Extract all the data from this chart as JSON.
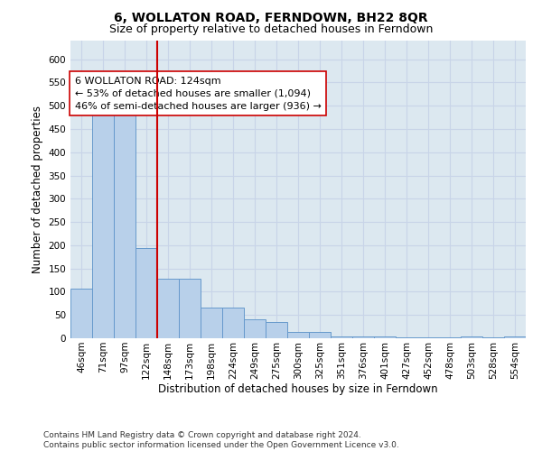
{
  "title": "6, WOLLATON ROAD, FERNDOWN, BH22 8QR",
  "subtitle": "Size of property relative to detached houses in Ferndown",
  "xlabel": "Distribution of detached houses by size in Ferndown",
  "ylabel": "Number of detached properties",
  "bar_labels": [
    "46sqm",
    "71sqm",
    "97sqm",
    "122sqm",
    "148sqm",
    "173sqm",
    "198sqm",
    "224sqm",
    "249sqm",
    "275sqm",
    "300sqm",
    "325sqm",
    "351sqm",
    "376sqm",
    "401sqm",
    "427sqm",
    "452sqm",
    "478sqm",
    "503sqm",
    "528sqm",
    "554sqm"
  ],
  "bar_values": [
    107,
    487,
    483,
    193,
    128,
    128,
    65,
    65,
    40,
    35,
    13,
    13,
    4,
    4,
    4,
    2,
    2,
    2,
    4,
    2,
    4
  ],
  "bar_color": "#b8d0ea",
  "bar_edge_color": "#6699cc",
  "highlight_index": 3,
  "highlight_color": "#cc0000",
  "annotation_text": "6 WOLLATON ROAD: 124sqm\n← 53% of detached houses are smaller (1,094)\n46% of semi-detached houses are larger (936) →",
  "annotation_box_color": "white",
  "annotation_box_edge": "#cc0000",
  "ylim": [
    0,
    640
  ],
  "yticks": [
    0,
    50,
    100,
    150,
    200,
    250,
    300,
    350,
    400,
    450,
    500,
    550,
    600
  ],
  "grid_color": "#c8d4e8",
  "bg_color": "#dce8f0",
  "footer": "Contains HM Land Registry data © Crown copyright and database right 2024.\nContains public sector information licensed under the Open Government Licence v3.0.",
  "title_fontsize": 10,
  "subtitle_fontsize": 9,
  "annotation_fontsize": 8,
  "axis_label_fontsize": 8.5,
  "tick_fontsize": 7.5,
  "footer_fontsize": 6.5
}
